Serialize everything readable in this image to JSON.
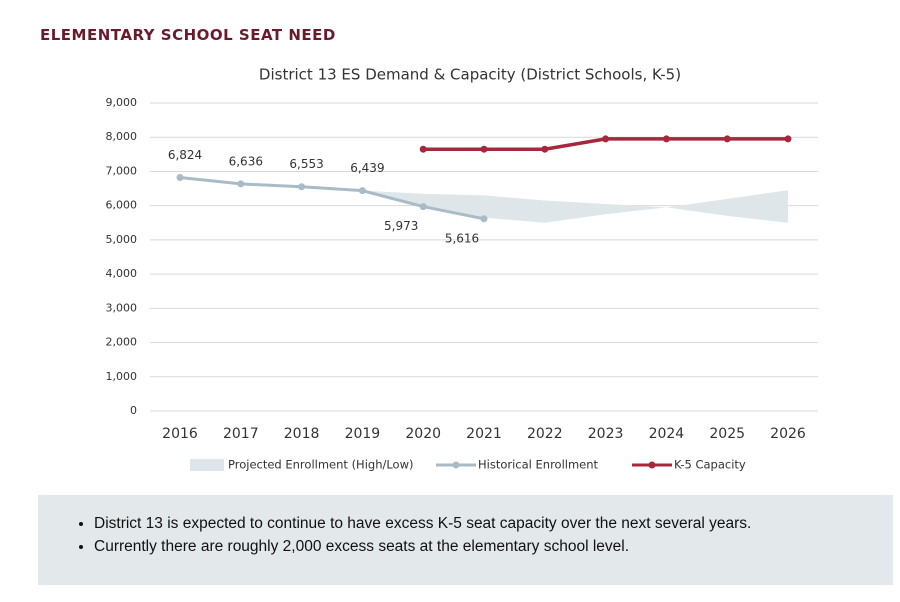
{
  "heading": "ELEMENTARY SCHOOL SEAT NEED",
  "chart_data": {
    "type": "line",
    "title": "District 13 ES Demand & Capacity (District Schools, K-5)",
    "categories": [
      "2016",
      "2017",
      "2018",
      "2019",
      "2020",
      "2021",
      "2022",
      "2023",
      "2024",
      "2025",
      "2026"
    ],
    "ylim": [
      0,
      9000
    ],
    "yticks": [
      0,
      {
        "value": 1000,
        "label": "1,000"
      },
      {
        "value": 2000,
        "label": "2,000"
      },
      {
        "value": 3000,
        "label": "3,000"
      },
      {
        "value": 4000,
        "label": "4,000"
      },
      {
        "value": 5000,
        "label": "5,000"
      },
      {
        "value": 6000,
        "label": "6,000"
      },
      {
        "value": 7000,
        "label": "7,000"
      },
      {
        "value": 8000,
        "label": "8,000"
      },
      {
        "value": 9000,
        "label": "9,000"
      }
    ],
    "grid": true,
    "series": [
      {
        "name": "Projected Enrollment (High/Low)",
        "type": "band",
        "color": "#dfe6ea",
        "high": [
          null,
          null,
          null,
          6439,
          6350,
          6300,
          6150,
          6050,
          5950,
          6200,
          6450
        ],
        "low": [
          null,
          null,
          null,
          6439,
          6000,
          5650,
          5500,
          5750,
          5950,
          5700,
          5500
        ]
      },
      {
        "name": "Historical Enrollment",
        "color": "#a9bcc6",
        "values": [
          6824,
          6636,
          6553,
          6439,
          5973,
          5616,
          null,
          null,
          null,
          null,
          null
        ],
        "value_labels": [
          "6,824",
          "6,636",
          "6,553",
          "6,439",
          "5,973",
          "5,616",
          null,
          null,
          null,
          null,
          null
        ]
      },
      {
        "name": "K-5 Capacity",
        "color": "#a6283d",
        "values": [
          null,
          null,
          null,
          null,
          7650,
          7650,
          7650,
          7950,
          7950,
          7950,
          7950
        ]
      }
    ]
  },
  "bullets": [
    "District 13 is expected to continue to have excess K-5 seat capacity over the next several years.",
    "Currently there are roughly 2,000 excess seats at the elementary school level."
  ]
}
